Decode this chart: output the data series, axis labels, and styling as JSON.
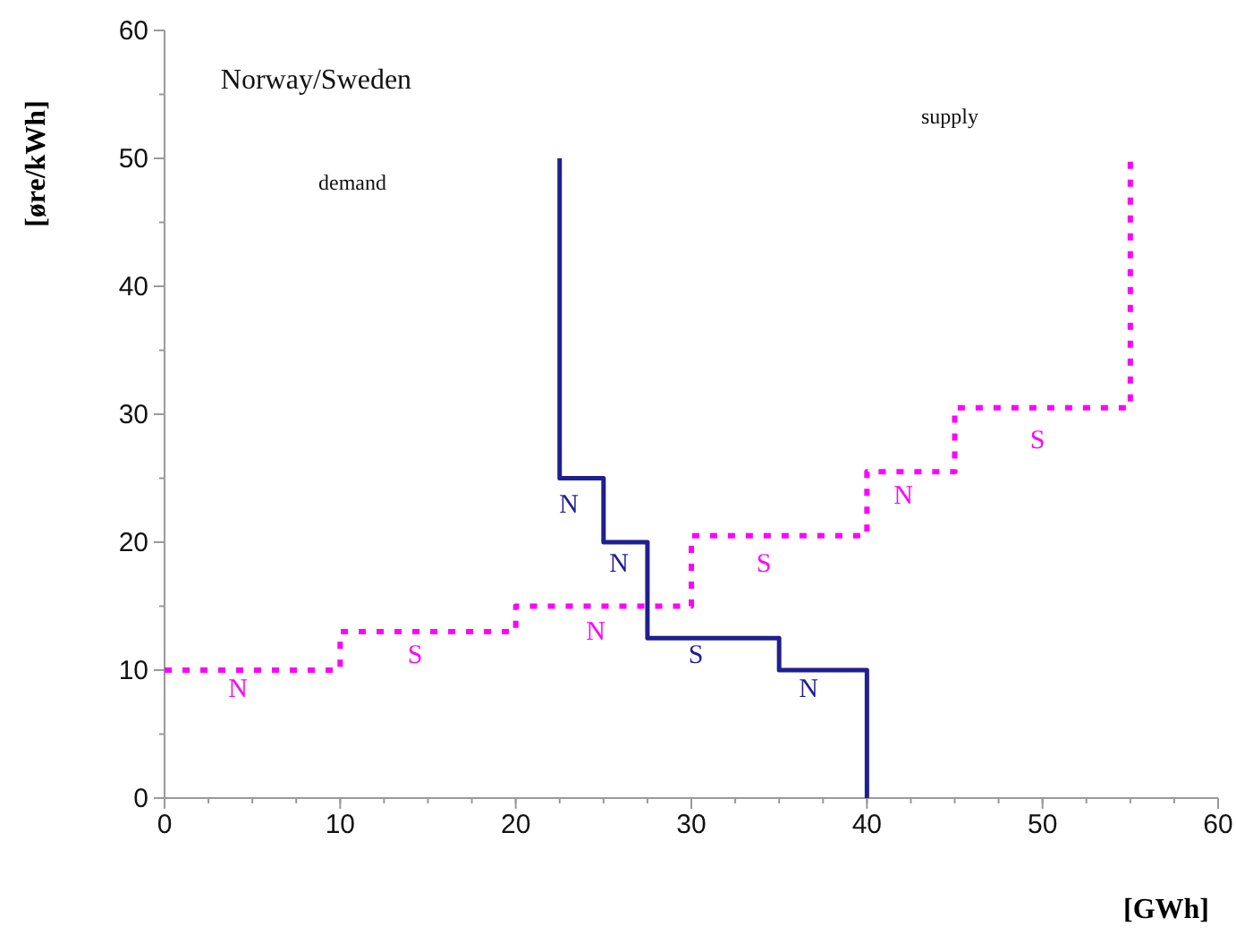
{
  "chart_data": {
    "type": "line",
    "title": "Norway/Sweden",
    "xlabel": "[GWh]",
    "ylabel": "[øre/kWh]",
    "xlim": [
      0,
      60
    ],
    "ylim": [
      0,
      60
    ],
    "xticks": [
      0,
      10,
      20,
      30,
      40,
      50,
      60
    ],
    "yticks": [
      0,
      10,
      20,
      30,
      40,
      50,
      60
    ],
    "grid": false,
    "series": [
      {
        "x": [
          22.5,
          22.5,
          25,
          25,
          27.5,
          27.5,
          35,
          35,
          40,
          40
        ],
        "values": [
          50,
          25,
          25,
          20,
          20,
          12.5,
          12.5,
          10,
          10,
          0
        ],
        "color": "#1f1f8f",
        "line_style": "solid"
      },
      {
        "x": [
          0,
          10,
          10,
          20,
          20,
          30,
          30,
          40,
          40,
          45,
          45,
          55,
          55
        ],
        "values": [
          10,
          10,
          13,
          13,
          15,
          15,
          20.5,
          20.5,
          25.5,
          25.5,
          30.5,
          30.5,
          50
        ],
        "color": "#ff00ff",
        "line_style": "dotted"
      }
    ],
    "annotations": [
      "demand",
      "supply",
      "N",
      "N",
      "S",
      "N",
      "N",
      "S",
      "N",
      "S",
      "N",
      "S"
    ]
  }
}
